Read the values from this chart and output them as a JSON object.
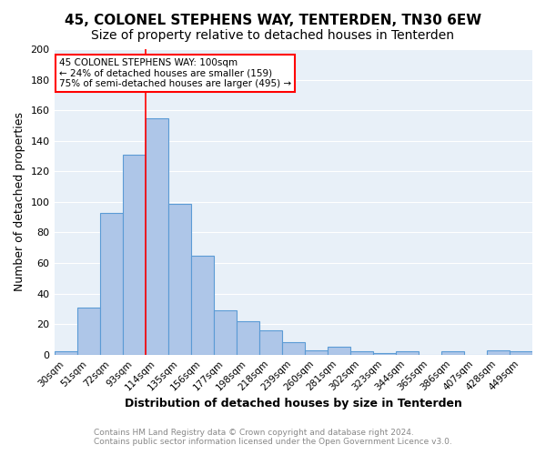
{
  "title": "45, COLONEL STEPHENS WAY, TENTERDEN, TN30 6EW",
  "subtitle": "Size of property relative to detached houses in Tenterden",
  "xlabel": "Distribution of detached houses by size in Tenterden",
  "ylabel": "Number of detached properties",
  "categories": [
    "30sqm",
    "51sqm",
    "72sqm",
    "93sqm",
    "114sqm",
    "135sqm",
    "156sqm",
    "177sqm",
    "198sqm",
    "218sqm",
    "239sqm",
    "260sqm",
    "281sqm",
    "302sqm",
    "323sqm",
    "344sqm",
    "365sqm",
    "386sqm",
    "407sqm",
    "428sqm",
    "449sqm"
  ],
  "values": [
    2,
    31,
    93,
    131,
    155,
    99,
    65,
    29,
    22,
    16,
    8,
    3,
    5,
    2,
    1,
    2,
    0,
    2,
    0,
    3,
    2
  ],
  "bar_color": "#aec6e8",
  "bar_edge_color": "#5b9bd5",
  "vline_x": 3.5,
  "vline_color": "red",
  "annotation_title": "45 COLONEL STEPHENS WAY: 100sqm",
  "annotation_line1": "← 24% of detached houses are smaller (159)",
  "annotation_line2": "75% of semi-detached houses are larger (495) →",
  "annotation_box_color": "red",
  "ylim": [
    0,
    200
  ],
  "yticks": [
    0,
    20,
    40,
    60,
    80,
    100,
    120,
    140,
    160,
    180,
    200
  ],
  "background_color": "#e8f0f8",
  "footer_line1": "Contains HM Land Registry data © Crown copyright and database right 2024.",
  "footer_line2": "Contains public sector information licensed under the Open Government Licence v3.0.",
  "title_fontsize": 11,
  "subtitle_fontsize": 10,
  "xlabel_fontsize": 9,
  "ylabel_fontsize": 9
}
